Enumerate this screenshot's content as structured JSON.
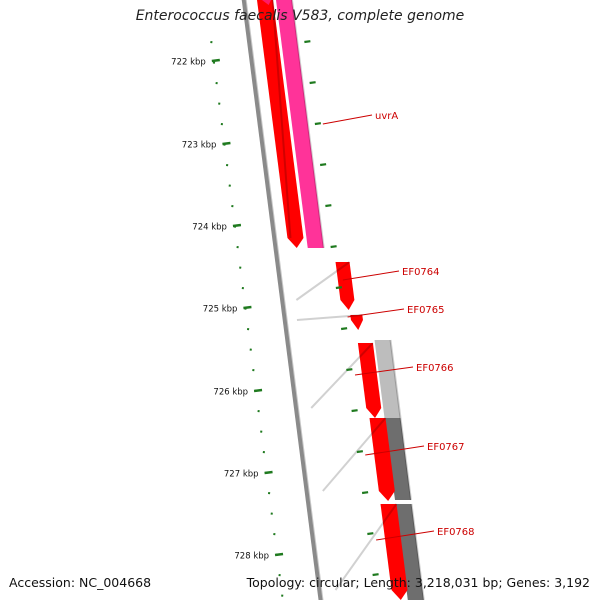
{
  "title": "Enterococcus faecalis V583, complete genome",
  "footer": {
    "accession": "Accession: NC_004668",
    "summary": "Topology: circular; Length: 3,218,031 bp; Genes: 3,192"
  },
  "colors": {
    "forward_gene": "#ff0000",
    "reverse_gene": "#ff3399",
    "gc_light": "#bdbdbd",
    "gc_dark": "#6e6e6e",
    "backbone": "#8a8a8a",
    "tick": "#1f7a1f",
    "gene_label": "#cc0000",
    "kbp_label": "#111111"
  },
  "kbp_labels": [
    "722 kbp",
    "723 kbp",
    "724 kbp",
    "725 kbp",
    "726 kbp",
    "727 kbp",
    "728 kbp"
  ],
  "genes": [
    {
      "label": "uvrA"
    },
    {
      "label": "EF0764"
    },
    {
      "label": "EF0765"
    },
    {
      "label": "EF0766"
    },
    {
      "label": "EF0767"
    },
    {
      "label": "EF0768"
    }
  ]
}
